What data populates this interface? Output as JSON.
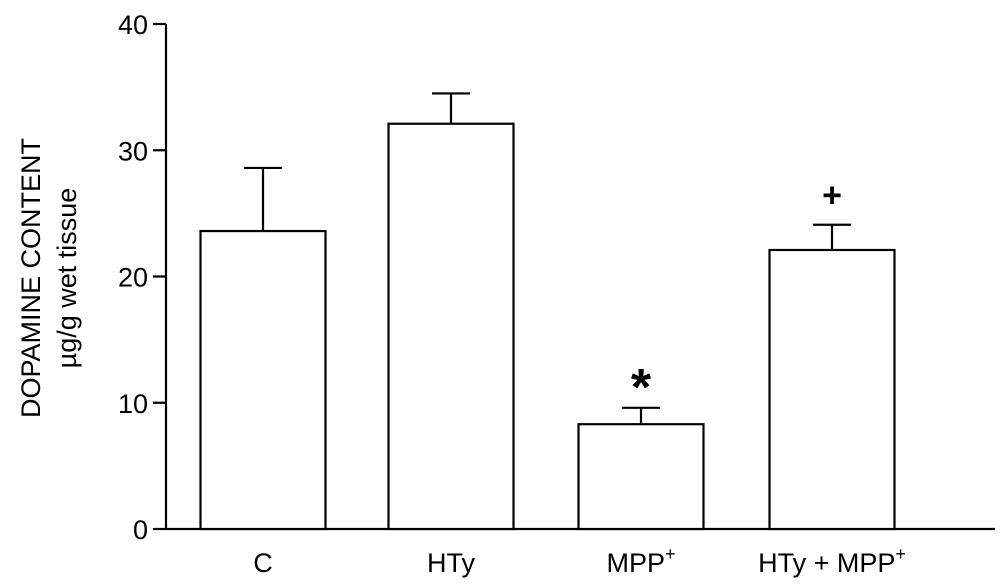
{
  "chart_data": {
    "type": "bar",
    "categories": [
      {
        "base": "C",
        "sup": ""
      },
      {
        "base": "HTy",
        "sup": ""
      },
      {
        "base": "MPP",
        "sup": "+"
      },
      {
        "base": "HTy + MPP",
        "sup": "+"
      }
    ],
    "values": [
      23.6,
      32.1,
      8.3,
      22.1
    ],
    "errors": [
      5.0,
      2.4,
      1.3,
      2.0
    ],
    "annotations": [
      "",
      "",
      "*",
      "+"
    ],
    "ylabel": "DOPAMINE CONTENT",
    "ylabel_sub": "µg/g wet tissue",
    "ylim": [
      0,
      40
    ],
    "yticks": [
      0,
      10,
      20,
      30,
      40
    ],
    "grid": false,
    "colors": {
      "bar_fill": "#ffffff",
      "stroke": "#000000"
    }
  }
}
